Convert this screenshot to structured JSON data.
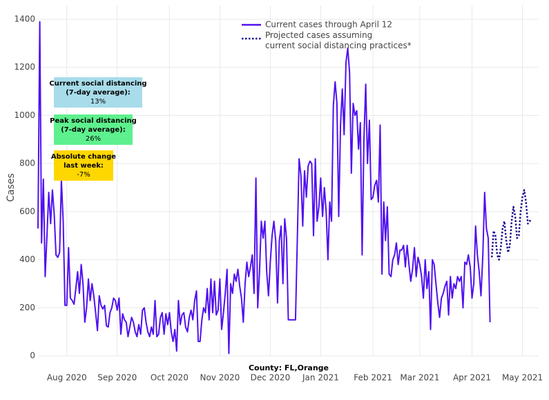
{
  "chart_data": {
    "type": "line",
    "y_label": "Cases",
    "x_label": "County: FL,Orange",
    "ylim": [
      0,
      1400
    ],
    "yticks": [
      0,
      200,
      400,
      600,
      800,
      1000,
      1200,
      1400
    ],
    "xlim": [
      0,
      278
    ],
    "xticks": [
      {
        "value": 16,
        "label": "Aug 2020"
      },
      {
        "value": 44,
        "label": "Sep 2020"
      },
      {
        "value": 73,
        "label": "Oct 2020"
      },
      {
        "value": 101,
        "label": "Nov 2020"
      },
      {
        "value": 129,
        "label": "Dec 2020"
      },
      {
        "value": 157,
        "label": "Jan 2021"
      },
      {
        "value": 186,
        "label": "Feb 2021"
      },
      {
        "value": 212,
        "label": "Mar 2021"
      },
      {
        "value": 241,
        "label": "Apr 2021"
      },
      {
        "value": 269,
        "label": "May 2021"
      }
    ],
    "grid": true,
    "series": [
      {
        "name": "Current cases through April 12",
        "color": "#5010f0",
        "dash": "solid",
        "values": [
          530,
          1390,
          470,
          735,
          330,
          500,
          680,
          550,
          690,
          590,
          420,
          410,
          430,
          730,
          560,
          210,
          210,
          450,
          240,
          230,
          215,
          280,
          350,
          260,
          380,
          300,
          140,
          200,
          320,
          230,
          300,
          250,
          180,
          105,
          250,
          210,
          195,
          210,
          125,
          120,
          180,
          200,
          240,
          230,
          190,
          240,
          90,
          175,
          150,
          140,
          80,
          120,
          160,
          140,
          100,
          80,
          130,
          90,
          190,
          200,
          140,
          100,
          80,
          120,
          90,
          230,
          80,
          90,
          160,
          180,
          90,
          175,
          130,
          180,
          100,
          60,
          110,
          20,
          230,
          130,
          170,
          180,
          120,
          100,
          160,
          190,
          150,
          230,
          270,
          60,
          60,
          150,
          200,
          180,
          280,
          150,
          320,
          180,
          310,
          170,
          190,
          320,
          110,
          180,
          260,
          360,
          10,
          300,
          260,
          340,
          310,
          360,
          290,
          240,
          140,
          300,
          390,
          330,
          370,
          420,
          260,
          740,
          200,
          350,
          560,
          490,
          560,
          350,
          250,
          390,
          500,
          560,
          480,
          220,
          480,
          540,
          300,
          570,
          490,
          150,
          150,
          150,
          150,
          150,
          480,
          820,
          750,
          540,
          770,
          660,
          790,
          810,
          800,
          500,
          820,
          560,
          620,
          740,
          580,
          700,
          600,
          400,
          640,
          560,
          1040,
          1140,
          1050,
          580,
          960,
          1110,
          920,
          1220,
          1280,
          1180,
          760,
          1050,
          1000,
          1020,
          860,
          970,
          420,
          900,
          1130,
          800,
          980,
          650,
          660,
          710,
          730,
          640,
          960,
          340,
          640,
          480,
          620,
          340,
          330,
          400,
          420,
          470,
          380,
          440,
          440,
          460,
          370,
          460,
          380,
          310,
          360,
          450,
          330,
          410,
          380,
          330,
          240,
          400,
          280,
          350,
          110,
          400,
          380,
          300,
          220,
          160,
          240,
          260,
          290,
          310,
          170,
          330,
          240,
          300,
          280,
          330,
          310,
          330,
          200,
          390,
          380,
          420,
          370,
          240,
          300,
          540,
          420,
          350,
          250,
          420,
          680,
          530,
          490,
          140
        ]
      },
      {
        "name": "Projected cases assuming current social distancing practices*",
        "color": "#1a0a8c",
        "dash": "dot",
        "x": [
          252,
          253,
          254,
          255,
          256,
          257,
          258,
          259,
          260,
          261,
          262,
          263,
          264,
          265,
          266,
          267,
          268,
          269,
          270,
          271,
          272,
          273,
          274
        ],
        "values": [
          410,
          520,
          500,
          420,
          400,
          450,
          530,
          560,
          480,
          430,
          460,
          560,
          620,
          580,
          490,
          500,
          600,
          660,
          690,
          640,
          550,
          560,
          570
        ]
      }
    ],
    "annotations": [
      {
        "lines": [
          "Current social distancing",
          "(7-day average):",
          "13%"
        ],
        "color": "#a8dcea"
      },
      {
        "lines": [
          "Peak social distancing",
          "(7-day average):",
          "26%"
        ],
        "color": "#5ef08e"
      },
      {
        "lines": [
          "Absolute change",
          "last week:",
          "-7%"
        ],
        "color": "#ffd700"
      }
    ]
  }
}
